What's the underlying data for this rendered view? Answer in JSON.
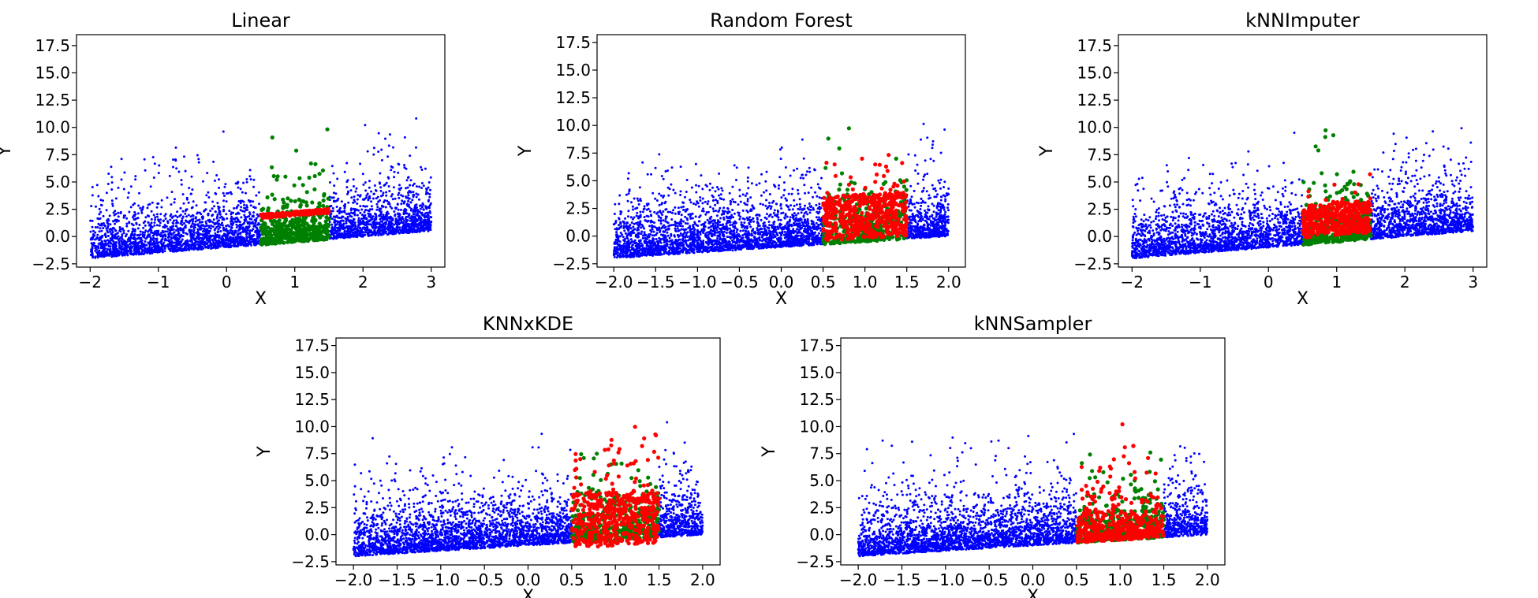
{
  "figure": {
    "colors": {
      "observed": "#0000ff",
      "true_missing": "#008000",
      "imputed": "#ff0000"
    }
  },
  "chart_data": [
    {
      "type": "scatter",
      "title": "Linear",
      "xlabel": "X",
      "ylabel": "Y",
      "xlim": [
        -2.2,
        3.2
      ],
      "ylim": [
        -2.8,
        18.5
      ],
      "xticks": [
        -2,
        -1,
        0,
        1,
        2,
        3
      ],
      "xtick_labels": [
        "−2",
        "−1",
        "0",
        "1",
        "2",
        "3"
      ],
      "yticks": [
        -2.5,
        0,
        2.5,
        5,
        7.5,
        10,
        12.5,
        15,
        17.5
      ],
      "ytick_labels": [
        "−2.5",
        "0.0",
        "2.5",
        "5.0",
        "7.5",
        "10.0",
        "12.5",
        "15.0",
        "17.5"
      ],
      "grid": false,
      "observed_x_range": [
        -2,
        3
      ],
      "missing_x_range": [
        0.5,
        1.5
      ],
      "imputed_pattern": "linear",
      "series": [
        {
          "role": "observed",
          "n": 3200,
          "color": "#0000ff"
        },
        {
          "role": "true_missing",
          "n": 420,
          "color": "#008000"
        },
        {
          "role": "imputed",
          "n": 260,
          "color": "#ff0000"
        }
      ]
    },
    {
      "type": "scatter",
      "title": "Random Forest",
      "xlabel": "X",
      "ylabel": "Y",
      "xlim": [
        -2.2,
        2.2
      ],
      "ylim": [
        -2.8,
        18.2
      ],
      "xticks": [
        -2.0,
        -1.5,
        -1.0,
        -0.5,
        0.0,
        0.5,
        1.0,
        1.5,
        2.0
      ],
      "xtick_labels": [
        "−2.0",
        "−1.5",
        "−1.0",
        "−0.5",
        "0.0",
        "0.5",
        "1.0",
        "1.5",
        "2.0"
      ],
      "yticks": [
        -2.5,
        0,
        2.5,
        5,
        7.5,
        10,
        12.5,
        15,
        17.5
      ],
      "ytick_labels": [
        "−2.5",
        "0.0",
        "2.5",
        "5.0",
        "7.5",
        "10.0",
        "12.5",
        "15.0",
        "17.5"
      ],
      "grid": false,
      "observed_x_range": [
        -2,
        2
      ],
      "missing_x_range": [
        0.5,
        1.5
      ],
      "imputed_pattern": "dense_block",
      "series": [
        {
          "role": "observed",
          "n": 3200,
          "color": "#0000ff"
        },
        {
          "role": "true_missing",
          "n": 420,
          "color": "#008000"
        },
        {
          "role": "imputed",
          "n": 520,
          "color": "#ff0000"
        }
      ]
    },
    {
      "type": "scatter",
      "title": "kNNImputer",
      "xlabel": "X",
      "ylabel": "Y",
      "xlim": [
        -2.2,
        3.2
      ],
      "ylim": [
        -2.8,
        18.5
      ],
      "xticks": [
        -2,
        -1,
        0,
        1,
        2,
        3
      ],
      "xtick_labels": [
        "−2",
        "−1",
        "0",
        "1",
        "2",
        "3"
      ],
      "yticks": [
        -2.5,
        0,
        2.5,
        5,
        7.5,
        10,
        12.5,
        15,
        17.5
      ],
      "ytick_labels": [
        "−2.5",
        "0.0",
        "2.5",
        "5.0",
        "7.5",
        "10.0",
        "12.5",
        "15.0",
        "17.5"
      ],
      "grid": false,
      "observed_x_range": [
        -2,
        3
      ],
      "missing_x_range": [
        0.5,
        1.5
      ],
      "imputed_pattern": "block",
      "series": [
        {
          "role": "observed",
          "n": 3200,
          "color": "#0000ff"
        },
        {
          "role": "true_missing",
          "n": 420,
          "color": "#008000"
        },
        {
          "role": "imputed",
          "n": 420,
          "color": "#ff0000"
        }
      ]
    },
    {
      "type": "scatter",
      "title": "KNNxKDE",
      "xlabel": "X",
      "ylabel": "Y",
      "xlim": [
        -2.2,
        2.2
      ],
      "ylim": [
        -2.8,
        18.2
      ],
      "xticks": [
        -2.0,
        -1.5,
        -1.0,
        -0.5,
        0.0,
        0.5,
        1.0,
        1.5,
        2.0
      ],
      "xtick_labels": [
        "−2.0",
        "−1.5",
        "−1.0",
        "−0.5",
        "0.0",
        "0.5",
        "1.0",
        "1.5",
        "2.0"
      ],
      "yticks": [
        -2.5,
        0,
        2.5,
        5,
        7.5,
        10,
        12.5,
        15,
        17.5
      ],
      "ytick_labels": [
        "−2.5",
        "0.0",
        "2.5",
        "5.0",
        "7.5",
        "10.0",
        "12.5",
        "15.0",
        "17.5"
      ],
      "grid": false,
      "observed_x_range": [
        -2,
        2
      ],
      "missing_x_range": [
        0.5,
        1.5
      ],
      "imputed_pattern": "scattered",
      "series": [
        {
          "role": "observed",
          "n": 3200,
          "color": "#0000ff"
        },
        {
          "role": "true_missing",
          "n": 420,
          "color": "#008000"
        },
        {
          "role": "imputed",
          "n": 520,
          "color": "#ff0000"
        }
      ]
    },
    {
      "type": "scatter",
      "title": "kNNSampler",
      "xlabel": "X",
      "ylabel": "Y",
      "xlim": [
        -2.2,
        2.2
      ],
      "ylim": [
        -2.8,
        18.2
      ],
      "xticks": [
        -2.0,
        -1.5,
        -1.0,
        -0.5,
        0.0,
        0.5,
        1.0,
        1.5,
        2.0
      ],
      "xtick_labels": [
        "−2.0",
        "−1.5",
        "−1.0",
        "−0.5",
        "0.0",
        "0.5",
        "1.0",
        "1.5",
        "2.0"
      ],
      "yticks": [
        -2.5,
        0,
        2.5,
        5,
        7.5,
        10,
        12.5,
        15,
        17.5
      ],
      "ytick_labels": [
        "−2.5",
        "0.0",
        "2.5",
        "5.0",
        "7.5",
        "10.0",
        "12.5",
        "15.0",
        "17.5"
      ],
      "grid": false,
      "observed_x_range": [
        -2,
        2
      ],
      "missing_x_range": [
        0.5,
        1.5
      ],
      "imputed_pattern": "sampled",
      "series": [
        {
          "role": "observed",
          "n": 3200,
          "color": "#0000ff"
        },
        {
          "role": "true_missing",
          "n": 420,
          "color": "#008000"
        },
        {
          "role": "imputed",
          "n": 420,
          "color": "#ff0000"
        }
      ]
    }
  ]
}
